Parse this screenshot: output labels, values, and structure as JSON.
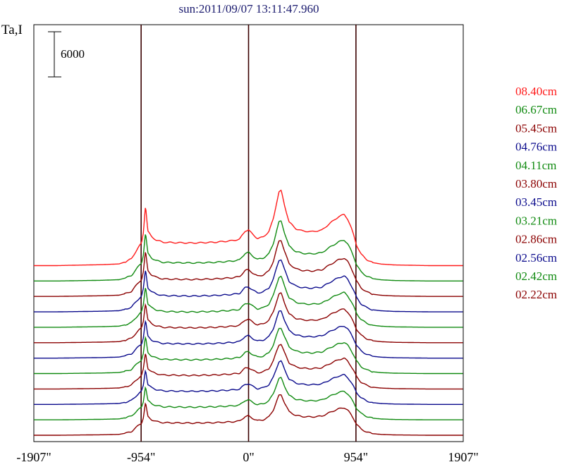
{
  "chart_data": {
    "type": "line",
    "title": "sun:2011/09/07 13:11:47.960",
    "ylabel": "Ta,I",
    "xlabel": "",
    "scale_bar": {
      "value": 6000,
      "label": "6000"
    },
    "x_ticks": [
      {
        "value": -1907,
        "label": "-1907\""
      },
      {
        "value": -954,
        "label": "-954\""
      },
      {
        "value": 0,
        "label": "0\""
      },
      {
        "value": 954,
        "label": "954\""
      },
      {
        "value": 1907,
        "label": "1907\""
      }
    ],
    "xlim": [
      -1907,
      1907
    ],
    "vertical_lines": [
      -954,
      0,
      954
    ],
    "series": [
      {
        "name": "08.40cm",
        "color": "#ff1a1a",
        "baseline": 1700,
        "scale": 1.0
      },
      {
        "name": "06.67cm",
        "color": "#108a10",
        "baseline": 3750,
        "scale": 0.8
      },
      {
        "name": "05.45cm",
        "color": "#8b0000",
        "baseline": 5800,
        "scale": 0.75
      },
      {
        "name": "04.76cm",
        "color": "#0a0a8c",
        "baseline": 7850,
        "scale": 0.7
      },
      {
        "name": "04.11cm",
        "color": "#108a10",
        "baseline": 9900,
        "scale": 0.68
      },
      {
        "name": "03.80cm",
        "color": "#8b0000",
        "baseline": 11950,
        "scale": 0.66
      },
      {
        "name": "03.45cm",
        "color": "#0a0a8c",
        "baseline": 14000,
        "scale": 0.63
      },
      {
        "name": "03.21cm",
        "color": "#108a10",
        "baseline": 16050,
        "scale": 0.61
      },
      {
        "name": "02.86cm",
        "color": "#8b0000",
        "baseline": 18100,
        "scale": 0.6
      },
      {
        "name": "02.56cm",
        "color": "#0a0a8c",
        "baseline": 20150,
        "scale": 0.58
      },
      {
        "name": "02.42cm",
        "color": "#108a10",
        "baseline": 22200,
        "scale": 0.56
      },
      {
        "name": "02.22cm",
        "color": "#8b0000",
        "baseline": 24250,
        "scale": 0.54
      }
    ],
    "profile": {
      "x": [
        -1907,
        -1700,
        -1300,
        -1150,
        -1090,
        -1040,
        -1000,
        -970,
        -950,
        -935,
        -915,
        -895,
        -860,
        -820,
        -760,
        -660,
        -500,
        -300,
        -150,
        -80,
        -30,
        0,
        40,
        80,
        130,
        180,
        220,
        250,
        270,
        290,
        320,
        360,
        420,
        480,
        560,
        650,
        730,
        800,
        850,
        880,
        910,
        935,
        960,
        1000,
        1050,
        1100,
        1180,
        1300,
        1600,
        1907
      ],
      "y": [
        0,
        0,
        120,
        220,
        520,
        900,
        1900,
        2600,
        3000,
        4300,
        8100,
        4600,
        3800,
        3400,
        3100,
        3050,
        3000,
        3100,
        3300,
        3500,
        4600,
        4750,
        4100,
        3600,
        3800,
        4500,
        6200,
        8400,
        9800,
        9950,
        8000,
        5800,
        4900,
        4600,
        4500,
        4700,
        5700,
        6500,
        6800,
        6200,
        5100,
        4000,
        2700,
        1500,
        800,
        400,
        200,
        80,
        0,
        0
      ]
    }
  }
}
